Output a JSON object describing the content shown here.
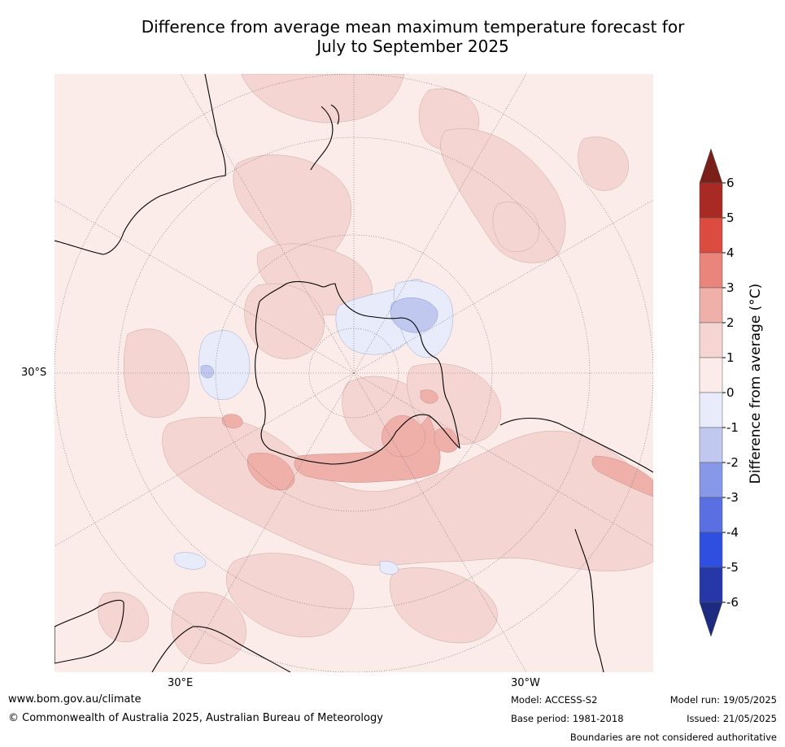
{
  "title_line1": "Difference from average mean maximum temperature forecast for",
  "title_line2": "July to September 2025",
  "map": {
    "latitude_label": "30°S",
    "longitude_labels": {
      "east": "30°E",
      "west": "30°W"
    },
    "colors": {
      "ocean_base": "#fbecea",
      "land_line": "#000000",
      "boundary_line": "#888888",
      "graticule": "#666666"
    }
  },
  "colorbar": {
    "label": "Difference from average (°C)",
    "ticks": [
      "6",
      "5",
      "4",
      "3",
      "2",
      "1",
      "0",
      "-1",
      "-2",
      "-3",
      "-4",
      "-5",
      "-6"
    ],
    "bins": [
      {
        "range": "above 6",
        "color": "#7b1f1a"
      },
      {
        "range": "5 to 6",
        "color": "#a92925"
      },
      {
        "range": "4 to 5",
        "color": "#dc4b40"
      },
      {
        "range": "3 to 4",
        "color": "#e9857b"
      },
      {
        "range": "2 to 3",
        "color": "#efb0aa"
      },
      {
        "range": "1 to 2",
        "color": "#f5d5d2"
      },
      {
        "range": "0 to 1",
        "color": "#fbecea"
      },
      {
        "range": "-1 to 0",
        "color": "#e8ebfa"
      },
      {
        "range": "-2 to -1",
        "color": "#c0c8f0"
      },
      {
        "range": "-3 to -2",
        "color": "#8798e8"
      },
      {
        "range": "-4 to -3",
        "color": "#5a70e2"
      },
      {
        "range": "-5 to -4",
        "color": "#2f4fe0"
      },
      {
        "range": "-6 to -5",
        "color": "#2638a8"
      },
      {
        "range": "below -6",
        "color": "#1c2a80"
      }
    ]
  },
  "footer": {
    "website": "www.bom.gov.au/climate",
    "copyright": "© Commonwealth of Australia 2025, Australian Bureau of Meteorology",
    "model": "Model: ACCESS-S2",
    "base_period": "Base period: 1981-2018",
    "model_run": "Model run: 19/05/2025",
    "issued": "Issued: 21/05/2025",
    "disclaimer": "Boundaries are not considered authoritative"
  }
}
